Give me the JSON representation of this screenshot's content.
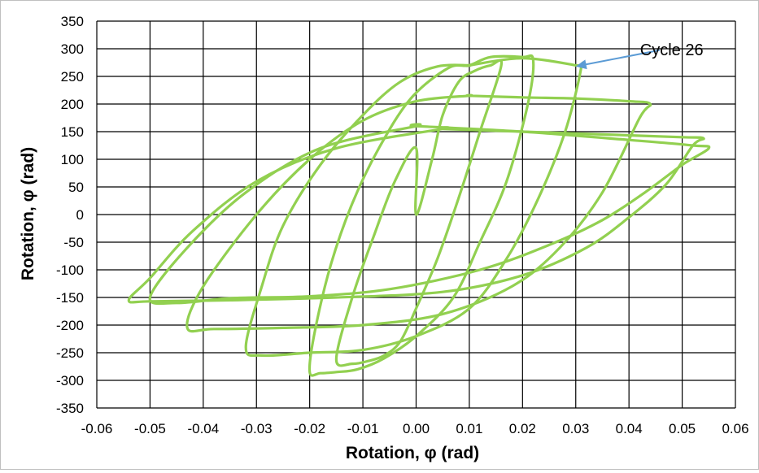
{
  "chart_data": {
    "type": "line",
    "xlabel": "Rotation, φ (rad)",
    "ylabel": "Rotation, φ (rad)",
    "xlim": [
      -0.06,
      0.06
    ],
    "ylim": [
      -350,
      350
    ],
    "x_ticks": [
      "-0.06",
      "-0.05",
      "-0.04",
      "-0.03",
      "-0.02",
      "-0.01",
      "0.00",
      "0.01",
      "0.02",
      "0.03",
      "0.04",
      "0.05",
      "0.06"
    ],
    "y_ticks": [
      "350",
      "300",
      "250",
      "200",
      "150",
      "100",
      "50",
      "0",
      "-50",
      "-100",
      "-150",
      "-200",
      "-250",
      "-300",
      "-350"
    ],
    "grid": true,
    "legend": "none",
    "line_color": "#92d050",
    "annotation": {
      "text": "Cycle 26",
      "point": [
        0.03,
        268
      ],
      "arrow_color": "#5b9bd5"
    },
    "series": [
      {
        "x": [
          0.0,
          0.003,
          0.005,
          0.008,
          0.011,
          0.014,
          0.016,
          0.012,
          0.008,
          0.004,
          0.0,
          -0.003,
          -0.006,
          -0.009,
          -0.012,
          -0.015,
          -0.012,
          -0.008,
          -0.004,
          0.0
        ],
        "y": [
          0,
          100,
          180,
          240,
          260,
          270,
          270,
          150,
          30,
          -80,
          -170,
          -230,
          -255,
          -265,
          -270,
          -262,
          -150,
          -40,
          60,
          120
        ]
      },
      {
        "x": [
          0.01,
          0.014,
          0.02,
          0.022,
          0.021,
          0.017,
          0.012,
          0.007,
          0.0,
          -0.006,
          -0.011,
          -0.015,
          -0.018,
          -0.02,
          -0.019,
          -0.016,
          -0.012,
          -0.007,
          -0.001,
          0.006
        ],
        "y": [
          270,
          285,
          285,
          280,
          200,
          60,
          -50,
          -150,
          -220,
          -260,
          -280,
          -285,
          -287,
          -285,
          -210,
          -90,
          20,
          120,
          210,
          265
        ]
      },
      {
        "x": [
          0.01,
          0.02,
          0.03,
          0.031,
          0.028,
          0.023,
          0.017,
          0.01,
          0.0,
          -0.01,
          -0.02,
          -0.029,
          -0.032,
          -0.029,
          -0.025,
          -0.018,
          -0.01,
          -0.003,
          0.004,
          0.01
        ],
        "y": [
          270,
          283,
          270,
          265,
          150,
          30,
          -80,
          -170,
          -220,
          -245,
          -250,
          -255,
          -240,
          -130,
          -20,
          90,
          180,
          240,
          268,
          270
        ]
      },
      {
        "x": [
          0.01,
          0.02,
          0.03,
          0.04,
          0.044,
          0.042,
          0.035,
          0.027,
          0.018,
          0.005,
          -0.01,
          -0.025,
          -0.038,
          -0.043,
          -0.04,
          -0.03,
          -0.02,
          -0.01,
          0.0,
          0.01
        ],
        "y": [
          215,
          212,
          210,
          205,
          200,
          175,
          40,
          -60,
          -130,
          -180,
          -200,
          -205,
          -207,
          -205,
          -130,
          0,
          100,
          170,
          205,
          215
        ]
      },
      {
        "x": [
          0.005,
          0.02,
          0.035,
          0.05,
          0.054,
          0.052,
          0.047,
          0.04,
          0.032,
          0.02,
          0.005,
          -0.015,
          -0.035,
          -0.05,
          -0.054,
          -0.05,
          -0.042,
          -0.03,
          -0.015,
          0.005
        ],
        "y": [
          155,
          150,
          145,
          140,
          138,
          125,
          55,
          -5,
          -60,
          -110,
          -140,
          -150,
          -155,
          -157,
          -155,
          -115,
          -30,
          60,
          120,
          155
        ]
      },
      {
        "x": [
          0.0,
          0.02,
          0.04,
          0.052,
          0.055,
          0.05,
          0.043,
          0.035,
          0.025,
          0.012,
          -0.005,
          -0.02,
          -0.03,
          -0.036,
          -0.045,
          -0.05,
          -0.043,
          -0.032,
          -0.018,
          0.0
        ],
        "y": [
          160,
          150,
          135,
          125,
          120,
          90,
          40,
          -10,
          -55,
          -100,
          -135,
          -148,
          -150,
          -152,
          -160,
          -150,
          -60,
          40,
          120,
          160
        ]
      }
    ]
  }
}
